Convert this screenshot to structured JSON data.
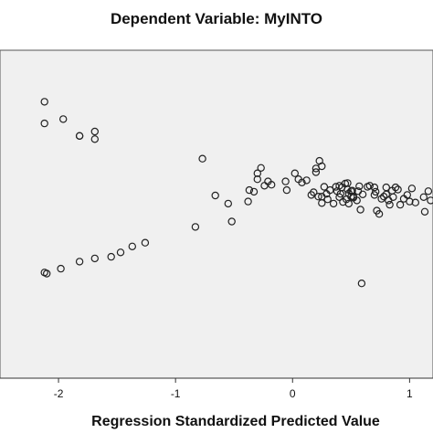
{
  "chart_data": {
    "type": "scatter",
    "title": "Dependent Variable: MyINTO",
    "xlabel": "Regression Standardized Predicted Value",
    "ylabel": "",
    "xlim": [
      -2.5,
      1.2
    ],
    "ylim": [
      -3.55,
      2.5
    ],
    "x_ticks": [
      -2,
      -1,
      0,
      1
    ],
    "x_tick_labels": [
      "-2",
      "-1",
      "0",
      "1"
    ],
    "grid": false,
    "legend": "none",
    "marker": "open-circle",
    "plot_background": "#f0f0f0",
    "marker_color": "#222222",
    "x": [
      -2.12,
      -2.12,
      -1.96,
      -1.82,
      -1.82,
      -1.69,
      -1.69,
      -2.12,
      -2.1,
      -1.98,
      -1.82,
      -1.69,
      -1.55,
      -1.47,
      -1.37,
      -1.26,
      -0.83,
      -0.77,
      -0.66,
      -0.55,
      -0.52,
      -0.38,
      -0.37,
      -0.33,
      -0.3,
      -0.3,
      -0.27,
      -0.24,
      -0.21,
      -0.18,
      -0.06,
      -0.05,
      0.02,
      0.05,
      0.08,
      0.12,
      0.16,
      0.18,
      0.2,
      0.2,
      0.22,
      0.23,
      0.25,
      0.25,
      0.25,
      0.27,
      0.29,
      0.3,
      0.32,
      0.35,
      0.37,
      0.38,
      0.4,
      0.4,
      0.41,
      0.42,
      0.43,
      0.45,
      0.46,
      0.47,
      0.47,
      0.48,
      0.48,
      0.5,
      0.5,
      0.51,
      0.52,
      0.52,
      0.55,
      0.56,
      0.57,
      0.58,
      0.6,
      0.64,
      0.66,
      0.7,
      0.7,
      0.71,
      0.72,
      0.74,
      0.76,
      0.78,
      0.8,
      0.8,
      0.82,
      0.83,
      0.85,
      0.86,
      0.88,
      0.9,
      0.92,
      0.95,
      0.98,
      1.0,
      1.02,
      1.05,
      1.12,
      1.13,
      1.16,
      1.18,
      0.59
    ],
    "y": [
      1.55,
      1.15,
      1.23,
      0.92,
      0.92,
      1.0,
      0.86,
      -1.6,
      -1.62,
      -1.53,
      -1.4,
      -1.34,
      -1.31,
      -1.23,
      -1.12,
      -1.05,
      -0.76,
      0.5,
      -0.18,
      -0.33,
      -0.66,
      -0.29,
      -0.08,
      -0.11,
      0.23,
      0.12,
      0.33,
      0.0,
      0.08,
      0.02,
      0.08,
      -0.08,
      0.23,
      0.12,
      0.06,
      0.1,
      -0.17,
      -0.12,
      0.25,
      0.32,
      -0.2,
      0.46,
      0.36,
      -0.2,
      -0.32,
      -0.02,
      -0.15,
      -0.25,
      -0.08,
      -0.33,
      -0.02,
      -0.1,
      0.0,
      -0.21,
      -0.15,
      -0.03,
      -0.3,
      0.04,
      -0.25,
      -0.07,
      0.05,
      -0.14,
      -0.33,
      -0.2,
      -0.1,
      -0.09,
      -0.22,
      -0.2,
      -0.27,
      -0.1,
      -0.01,
      -0.44,
      -0.16,
      -0.02,
      0.0,
      -0.17,
      -0.03,
      -0.11,
      -0.46,
      -0.52,
      -0.24,
      -0.2,
      -0.16,
      -0.03,
      -0.27,
      -0.35,
      -0.09,
      -0.21,
      -0.03,
      -0.07,
      -0.35,
      -0.24,
      -0.17,
      -0.29,
      -0.05,
      -0.31,
      -0.21,
      -0.48,
      -0.1,
      -0.27,
      -1.8
    ]
  }
}
